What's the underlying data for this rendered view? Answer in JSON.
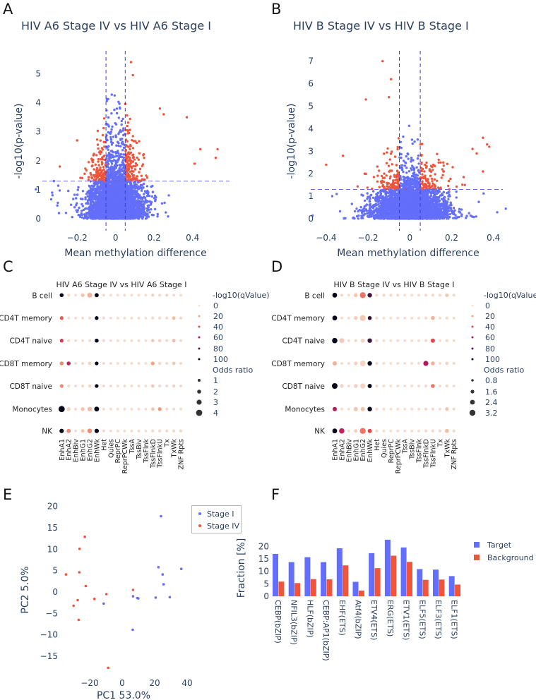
{
  "panel_letters": [
    "A",
    "B",
    "C",
    "D",
    "E",
    "F"
  ],
  "chart_data": [
    {
      "id": "A",
      "type": "scatter",
      "title": "HIV A6 Stage IV vs HIV A6 Stage I",
      "xlabel": "Mean methylation difference",
      "ylabel": "-log10(p-value)",
      "xticks": [
        -0.2,
        0,
        0.2,
        0.4
      ],
      "yticks": [
        0,
        1,
        2,
        3,
        4,
        5
      ],
      "xlim": [
        -0.34,
        0.6
      ],
      "ylim": [
        -0.2,
        5.9
      ],
      "thresholds": {
        "x": [
          -0.05,
          0.05
        ],
        "y": 1.3
      },
      "colors": {
        "not_significant": "#636efa",
        "significant": "#ef553b"
      },
      "grid": false
    },
    {
      "id": "B",
      "type": "scatter",
      "title": "HIV B Stage IV vs HIV B Stage I",
      "xlabel": "Mean methylation difference",
      "ylabel": "-log10(p-value)",
      "xticks": [
        -0.4,
        -0.2,
        0,
        0.2,
        0.4
      ],
      "yticks": [
        0,
        1,
        2,
        3,
        4,
        5,
        6,
        7
      ],
      "xlim": [
        -0.47,
        0.44
      ],
      "ylim": [
        -0.3,
        7.4
      ],
      "thresholds": {
        "x": [
          -0.05,
          0.05
        ],
        "y": 1.3
      },
      "colors": {
        "not_significant": "#636efa",
        "significant": "#ef553b"
      },
      "grid": false
    },
    {
      "id": "C",
      "type": "dot",
      "title": "HIV A6 Stage IV vs HIV A6 Stage I",
      "rows": [
        "B cell",
        "CD4T memory",
        "CD4T naive",
        "CD8T memory",
        "CD8T naive",
        "Monocytes",
        "NK"
      ],
      "columns": [
        "EnhA1",
        "EnhA2",
        "EnhBiv",
        "EnhG1",
        "EnhG2",
        "EnhWk",
        "Het",
        "Quies",
        "ReprPC",
        "ReprPCWk",
        "TssA",
        "TssBiv",
        "TssFlnk",
        "TssFlnkD",
        "TssFlnkU",
        "Tx",
        "TxWk",
        "ZNF Rpts"
      ],
      "highlighted_columns": [
        "EnhA1",
        "EnhWk"
      ],
      "highlight_color": "#1f77b4",
      "color_legend_title": "-log10(qValue)",
      "color_legend": [
        0,
        20,
        40,
        60,
        80,
        100
      ],
      "size_legend_title": "Odds ratio",
      "size_legend": [
        "1",
        "2",
        "3",
        "4"
      ],
      "size_legend_values": [
        1,
        2,
        3,
        4
      ],
      "qvalue": [
        [
          100,
          3,
          2,
          10,
          15,
          100,
          3,
          2,
          2,
          2,
          2,
          2,
          2,
          5,
          3,
          4,
          3,
          2
        ],
        [
          35,
          2,
          2,
          3,
          2,
          100,
          3,
          2,
          2,
          2,
          2,
          2,
          2,
          3,
          3,
          3,
          12,
          3
        ],
        [
          45,
          3,
          2,
          3,
          2,
          100,
          3,
          2,
          2,
          2,
          2,
          2,
          2,
          8,
          5,
          3,
          12,
          3
        ],
        [
          25,
          55,
          2,
          3,
          5,
          100,
          3,
          2,
          2,
          2,
          2,
          2,
          2,
          20,
          4,
          3,
          8,
          3
        ],
        [
          25,
          3,
          2,
          3,
          4,
          100,
          3,
          2,
          2,
          2,
          2,
          2,
          2,
          8,
          3,
          3,
          5,
          3
        ],
        [
          100,
          5,
          3,
          10,
          12,
          100,
          3,
          2,
          2,
          2,
          2,
          2,
          2,
          8,
          22,
          3,
          3,
          2
        ],
        [
          100,
          25,
          2,
          10,
          25,
          100,
          3,
          2,
          2,
          2,
          2,
          2,
          2,
          3,
          3,
          3,
          3,
          3
        ]
      ],
      "odds_ratio": [
        [
          2.0,
          1.2,
          1,
          1.8,
          2.8,
          2.2,
          1.1,
          1,
          1,
          1,
          1,
          1,
          1,
          1.4,
          1.2,
          1.2,
          1.1,
          1
        ],
        [
          1.8,
          1,
          1,
          1.1,
          1.2,
          1.8,
          1.2,
          1,
          1,
          1,
          1,
          1,
          1,
          1.2,
          1.2,
          1.2,
          1.6,
          1.2
        ],
        [
          1.8,
          1.1,
          1,
          1.1,
          1,
          2,
          1.2,
          1,
          1,
          1,
          1,
          1,
          1,
          1.5,
          1.4,
          1.1,
          1.6,
          1.1
        ],
        [
          2,
          2,
          1,
          1.2,
          1.5,
          1.8,
          1.1,
          1,
          1,
          1,
          1,
          1,
          1,
          1.8,
          1.3,
          1.1,
          1.5,
          1.2
        ],
        [
          1.8,
          1.2,
          1,
          1.1,
          1.3,
          1.8,
          1.1,
          1,
          1,
          1,
          1,
          1,
          1,
          1.5,
          1.2,
          1.1,
          1.3,
          1.1
        ],
        [
          4,
          1.8,
          1.2,
          1.8,
          2.5,
          2.8,
          1.1,
          1,
          1,
          1,
          1,
          1,
          1,
          1.6,
          1.8,
          1.1,
          1.1,
          1
        ],
        [
          2.4,
          2.2,
          1,
          1.6,
          2.6,
          2.4,
          1.1,
          1,
          1,
          1,
          1,
          1,
          1,
          1.2,
          1.2,
          1.2,
          1.2,
          1.2
        ]
      ]
    },
    {
      "id": "D",
      "type": "dot",
      "title": "HIV B Stage IV vs HIV B Stage I",
      "rows": [
        "B cell",
        "CD4T memory",
        "CD4T naive",
        "CD8T memory",
        "CD8T naive",
        "Monocytes",
        "NK"
      ],
      "columns": [
        "EnhA1",
        "EnhA2",
        "EnhBiv",
        "EnhG1",
        "EnhG2",
        "EnhWk",
        "Het",
        "Quies",
        "ReprPC",
        "ReprPCWk",
        "TssA",
        "TssBiv",
        "TssFlnk",
        "TssFlnkD",
        "TssFlnkU",
        "Tx",
        "TxWk",
        "ZNF Rpts"
      ],
      "highlighted_columns": [
        "EnhA1",
        "EnhWk"
      ],
      "highlight_color": "#1f77b4",
      "color_legend_title": "-log10(qValue",
      "color_legend": [
        0,
        20,
        40,
        60,
        80,
        100
      ],
      "size_legend_title": "Odds ratio",
      "size_legend": [
        "0.8",
        "1.6",
        "2.4",
        "3.2"
      ],
      "size_legend_values": [
        0.8,
        1.6,
        2.4,
        3.2
      ],
      "qvalue": [
        [
          100,
          3,
          2,
          10,
          30,
          85,
          3,
          3,
          3,
          3,
          2,
          2,
          2,
          3,
          3,
          3,
          8,
          3
        ],
        [
          100,
          2,
          2,
          6,
          8,
          90,
          3,
          2,
          2,
          2,
          2,
          2,
          2,
          3,
          15,
          2,
          3,
          2
        ],
        [
          100,
          8,
          2,
          3,
          5,
          85,
          3,
          2,
          2,
          2,
          2,
          2,
          2,
          3,
          40,
          2,
          3,
          2
        ],
        [
          15,
          2,
          2,
          6,
          5,
          100,
          3,
          2,
          2,
          2,
          2,
          2,
          2,
          60,
          15,
          2,
          4,
          3
        ],
        [
          100,
          5,
          2,
          6,
          5,
          100,
          3,
          2,
          2,
          2,
          2,
          2,
          2,
          3,
          30,
          2,
          3,
          2
        ],
        [
          60,
          2,
          2,
          10,
          10,
          100,
          3,
          2,
          2,
          2,
          2,
          2,
          2,
          3,
          3,
          2,
          10,
          3
        ],
        [
          100,
          55,
          2,
          6,
          30,
          40,
          3,
          2,
          2,
          2,
          2,
          2,
          2,
          3,
          3,
          3,
          12,
          3
        ]
      ],
      "odds_ratio": [
        [
          2.4,
          1.2,
          1,
          1.8,
          3.2,
          2.2,
          1.2,
          1.2,
          1.2,
          1.2,
          1,
          1,
          1,
          1.2,
          1.2,
          1.2,
          1.6,
          1.2
        ],
        [
          2.4,
          1,
          1,
          1.8,
          3.2,
          1.8,
          1.2,
          1,
          1,
          1,
          1,
          1,
          1,
          1.2,
          1.8,
          1,
          1.2,
          1
        ],
        [
          2.8,
          2.4,
          1,
          1.2,
          2,
          2.2,
          1.2,
          1,
          1,
          1,
          1,
          1,
          1,
          1.2,
          2,
          1,
          1.2,
          1
        ],
        [
          2,
          1,
          1,
          1.6,
          3,
          2.2,
          1.2,
          1,
          1,
          1,
          1,
          1,
          1,
          2.6,
          1.8,
          1,
          1.4,
          1.2
        ],
        [
          3,
          1.6,
          1,
          1.8,
          2.6,
          2,
          1.2,
          1,
          1,
          1,
          1,
          1,
          1,
          1.2,
          1.8,
          1,
          1.2,
          1
        ],
        [
          2,
          1,
          1,
          2,
          2,
          2.2,
          1.2,
          1,
          1,
          1,
          1,
          1,
          1,
          1.2,
          1.2,
          1,
          1.6,
          1.2
        ],
        [
          2.4,
          2.8,
          1,
          1.6,
          3.2,
          2,
          1.2,
          1,
          1,
          1,
          1,
          1,
          1,
          1.2,
          1.2,
          1.2,
          1.8,
          1.2
        ]
      ]
    },
    {
      "id": "E",
      "type": "scatter",
      "xlabel": "PC1 53.0%",
      "ylabel": "PC2 5.0%",
      "xticks": [
        -20,
        0,
        20,
        40
      ],
      "yticks": [
        -15,
        -10,
        -5,
        0,
        5,
        10,
        15,
        20
      ],
      "legend_position": "top-right",
      "series": [
        {
          "name": "Stage I",
          "color": "#636efa",
          "points": [
            [
              23.9,
              17.7
            ],
            [
              22.3,
              5.8
            ],
            [
              36.4,
              5.4
            ],
            [
              24.9,
              4.1
            ],
            [
              25.5,
              1.8
            ],
            [
              6.7,
              -1.0
            ],
            [
              9.3,
              -1.4
            ],
            [
              9.9,
              -1.5
            ],
            [
              20.6,
              -1.3
            ],
            [
              29.3,
              -1.2
            ],
            [
              -11.4,
              -2.7
            ],
            [
              6.5,
              -8.8
            ]
          ]
        },
        {
          "name": "Stage IV",
          "color": "#ef553b",
          "points": [
            [
              -23,
              12.9
            ],
            [
              -26.2,
              10.1
            ],
            [
              -34.6,
              4.1
            ],
            [
              -26.4,
              4.6
            ],
            [
              -22.5,
              1.4
            ],
            [
              6.7,
              0.5
            ],
            [
              -9.7,
              -0.5
            ],
            [
              -17.1,
              -1.6
            ],
            [
              -27.4,
              -1.9
            ],
            [
              -29.9,
              -3.2
            ],
            [
              -26.8,
              -6.5
            ],
            [
              -8.6,
              -17.7
            ]
          ]
        }
      ]
    },
    {
      "id": "F",
      "type": "bar",
      "ylabel": "Fraction [%]",
      "categories": [
        "CEBP(bZIP)",
        "NFIL3(bZIP)",
        "HLF(bZIP)",
        "CEBP:AP1(bZIP)",
        "EHF(ETS)",
        "Atf4(bZIP)",
        "ETV4(ETS)",
        "ERG(ETS)",
        "ETV1(ETS)",
        "ELF5(ETS)",
        "ELF3(ETS)",
        "ELF1(ETS)"
      ],
      "yticks": [
        0,
        5,
        10,
        15,
        20
      ],
      "legend_position": "right",
      "series": [
        {
          "name": "Target",
          "color": "#636efa",
          "values": [
            17.0,
            13.7,
            15.7,
            13.7,
            19.3,
            5.8,
            17.3,
            22.7,
            19.6,
            10.9,
            10.7,
            8.1
          ]
        },
        {
          "name": "Background",
          "color": "#ef553b",
          "values": [
            5.9,
            5.3,
            6.9,
            6.8,
            12.4,
            2.3,
            11.3,
            16.3,
            13.8,
            6.6,
            6.7,
            4.7
          ]
        }
      ]
    }
  ]
}
